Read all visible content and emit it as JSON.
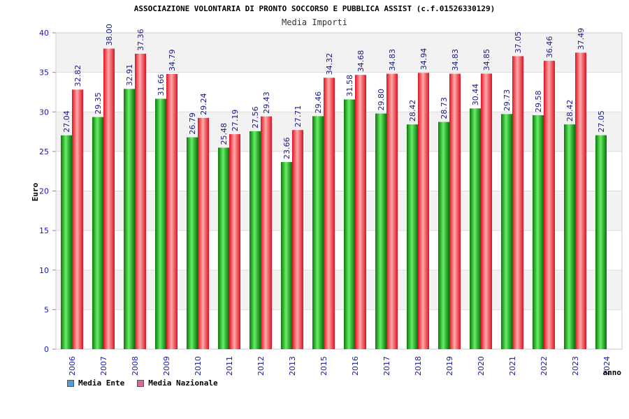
{
  "chart_data": {
    "type": "bar",
    "title": "ASSOCIAZIONE VOLONTARIA DI PRONTO SOCCORSO E PUBBLICA ASSIST (c.f.01526330129)",
    "subtitle": "Media Importi",
    "xlabel": "anno",
    "ylabel": "Euro",
    "ylim": [
      0,
      40
    ],
    "yticks": [
      "0",
      "5",
      "10",
      "15",
      "20",
      "25",
      "30",
      "35",
      "40"
    ],
    "categories": [
      "2006",
      "2007",
      "2008",
      "2009",
      "2010",
      "2011",
      "2012",
      "2013",
      "2015",
      "2016",
      "2017",
      "2018",
      "2019",
      "2020",
      "2021",
      "2022",
      "2023",
      "2024"
    ],
    "series": [
      {
        "name": "Media Ente",
        "color": "#22aa22",
        "values": [
          27.04,
          29.35,
          32.91,
          31.66,
          26.79,
          25.48,
          27.56,
          23.66,
          29.46,
          31.58,
          29.8,
          28.42,
          28.73,
          30.44,
          29.73,
          29.58,
          28.42,
          27.05
        ],
        "labels": [
          "27.04",
          "29.35",
          "32.91",
          "31.66",
          "26.79",
          "25.48",
          "27.56",
          "23.66",
          "29.46",
          "31.58",
          "29.80",
          "28.42",
          "28.73",
          "30.44",
          "29.73",
          "29.58",
          "28.42",
          "27.05"
        ]
      },
      {
        "name": "Media Nazionale",
        "color": "#ee3344",
        "values": [
          32.82,
          38.0,
          37.36,
          34.79,
          29.24,
          27.19,
          29.43,
          27.71,
          34.32,
          34.68,
          34.83,
          34.94,
          34.83,
          34.85,
          37.05,
          36.46,
          37.49,
          null
        ],
        "labels": [
          "32.82",
          "38.00",
          "37.36",
          "34.79",
          "29.24",
          "27.19",
          "29.43",
          "27.71",
          "34.32",
          "34.68",
          "34.83",
          "34.94",
          "34.83",
          "34.85",
          "37.05",
          "36.46",
          "37.49",
          null
        ]
      }
    ],
    "legend": [
      {
        "label": "Media Ente",
        "color": "#5599dd"
      },
      {
        "label": "Media Nazionale",
        "color": "#dd6699"
      }
    ],
    "grid": true,
    "legend_position": "bottom-left"
  }
}
